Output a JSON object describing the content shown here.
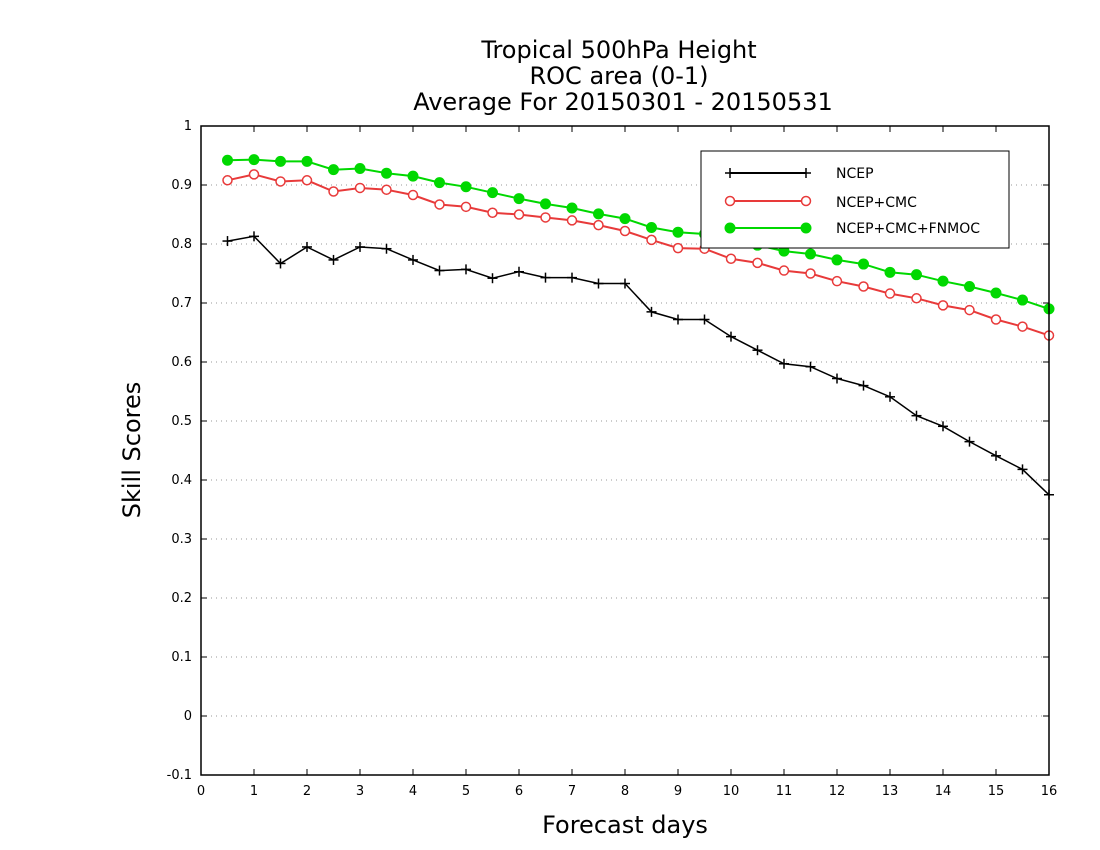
{
  "chart_data": {
    "type": "line",
    "title_lines": [
      "Tropical 500hPa Height",
      "ROC area (0-1)",
      "Average For 20150301 - 20150531"
    ],
    "xlabel": "Forecast days",
    "ylabel": "Skill Scores",
    "xlim": [
      0,
      16
    ],
    "ylim": [
      -0.1,
      1
    ],
    "xticks": [
      0,
      1,
      2,
      3,
      4,
      5,
      6,
      7,
      8,
      9,
      10,
      11,
      12,
      13,
      14,
      15,
      16
    ],
    "yticks": [
      -0.1,
      0,
      0.1,
      0.2,
      0.3,
      0.4,
      0.5,
      0.6,
      0.7,
      0.8,
      0.9,
      1
    ],
    "ytick_labels": [
      "-0.1",
      "0",
      "0.1",
      "0.2",
      "0.3",
      "0.4",
      "0.5",
      "0.6",
      "0.7",
      "0.8",
      "0.9",
      "1"
    ],
    "grid": "horizontal dotted",
    "legend_placement": "top-right",
    "x": [
      0.5,
      1,
      1.5,
      2,
      2.5,
      3,
      3.5,
      4,
      4.5,
      5,
      5.5,
      6,
      6.5,
      7,
      7.5,
      8,
      8.5,
      9,
      9.5,
      10,
      10.5,
      11,
      11.5,
      12,
      12.5,
      13,
      13.5,
      14,
      14.5,
      15,
      15.5,
      16
    ],
    "series": [
      {
        "name": "NCEP",
        "color": "#000000",
        "marker": "plus",
        "values": [
          0.805,
          0.813,
          0.767,
          0.795,
          0.773,
          0.795,
          0.792,
          0.773,
          0.755,
          0.757,
          0.742,
          0.753,
          0.743,
          0.743,
          0.733,
          0.733,
          0.685,
          0.672,
          0.672,
          0.643,
          0.62,
          0.597,
          0.592,
          0.572,
          0.56,
          0.541,
          0.509,
          0.491,
          0.465,
          0.441,
          0.418,
          0.375
        ]
      },
      {
        "name": "NCEP+CMC",
        "color": "#e83a3a",
        "marker": "open-circle",
        "values": [
          0.908,
          0.918,
          0.906,
          0.908,
          0.889,
          0.895,
          0.892,
          0.883,
          0.867,
          0.863,
          0.853,
          0.85,
          0.845,
          0.84,
          0.832,
          0.822,
          0.807,
          0.793,
          0.792,
          0.775,
          0.768,
          0.755,
          0.75,
          0.737,
          0.728,
          0.716,
          0.708,
          0.696,
          0.688,
          0.672,
          0.66,
          0.645
        ]
      },
      {
        "name": "NCEP+CMC+FNMOC",
        "color": "#00d800",
        "marker": "filled-circle",
        "values": [
          0.942,
          0.943,
          0.94,
          0.94,
          0.926,
          0.928,
          0.92,
          0.915,
          0.904,
          0.897,
          0.887,
          0.877,
          0.868,
          0.861,
          0.851,
          0.843,
          0.828,
          0.82,
          0.817,
          0.81,
          0.798,
          0.788,
          0.783,
          0.773,
          0.766,
          0.752,
          0.748,
          0.737,
          0.728,
          0.717,
          0.705,
          0.69
        ]
      }
    ]
  }
}
